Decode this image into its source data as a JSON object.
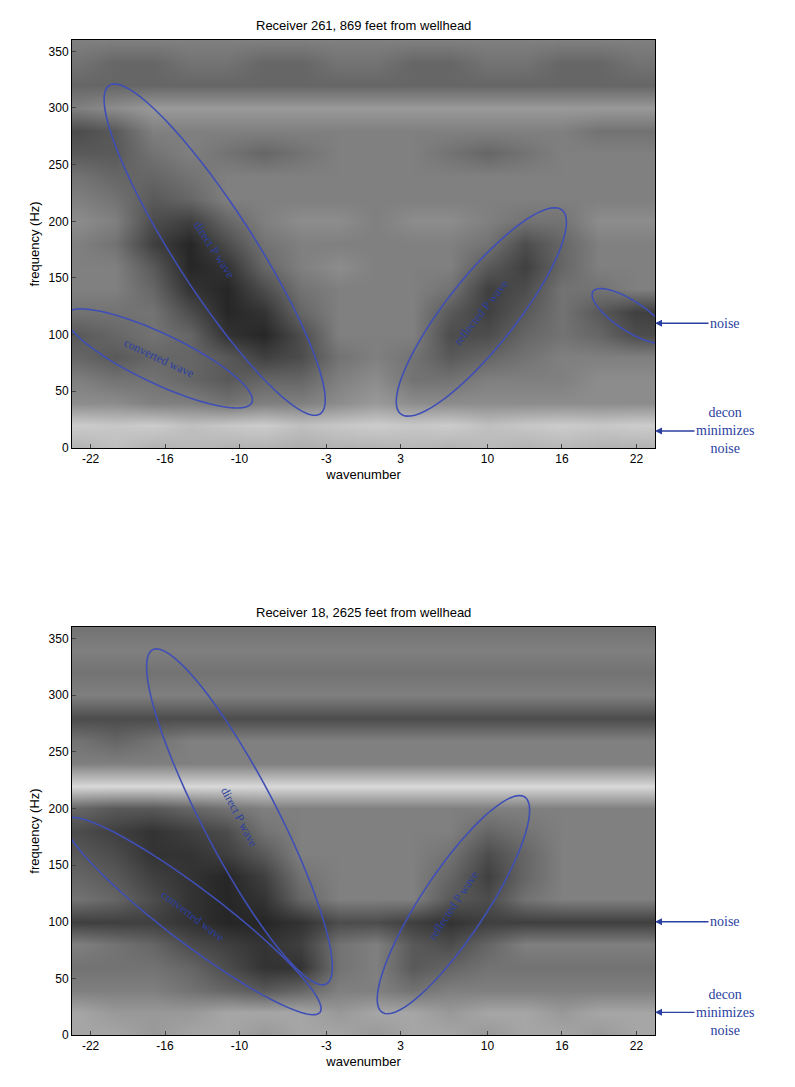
{
  "chart_data": [
    {
      "type": "heatmap",
      "title": "Receiver 261, 869 feet from wellhead",
      "x_label": "wavenumber",
      "y_label": "frequency (Hz)",
      "xlim": [
        -23.5,
        23.5
      ],
      "ylim": [
        0,
        360
      ],
      "xticks": [
        -22,
        -16,
        -10,
        -3,
        3,
        10,
        16,
        22
      ],
      "yticks": [
        0,
        50,
        100,
        150,
        200,
        250,
        300,
        350
      ],
      "zlim": [
        0,
        1
      ],
      "x": [
        -23,
        -20,
        -17,
        -14,
        -11,
        -8,
        -5,
        -2,
        1,
        4,
        7,
        10,
        13,
        16,
        19,
        22
      ],
      "y": [
        0,
        20,
        40,
        60,
        80,
        100,
        120,
        140,
        160,
        180,
        200,
        220,
        240,
        260,
        280,
        300,
        320,
        340,
        360
      ],
      "cells": [
        [
          0.3,
          0.25,
          0.3,
          0.28,
          0.3,
          0.3,
          0.32,
          0.3,
          0.3,
          0.28,
          0.3,
          0.27,
          0.3,
          0.28,
          0.3,
          0.3
        ],
        [
          0.2,
          0.22,
          0.2,
          0.25,
          0.22,
          0.2,
          0.25,
          0.22,
          0.2,
          0.22,
          0.2,
          0.25,
          0.22,
          0.2,
          0.22,
          0.2
        ],
        [
          0.45,
          0.45,
          0.5,
          0.5,
          0.55,
          0.5,
          0.5,
          0.45,
          0.4,
          0.45,
          0.45,
          0.45,
          0.45,
          0.45,
          0.45,
          0.45
        ],
        [
          0.5,
          0.55,
          0.55,
          0.6,
          0.65,
          0.6,
          0.6,
          0.5,
          0.45,
          0.55,
          0.55,
          0.5,
          0.5,
          0.5,
          0.45,
          0.45
        ],
        [
          0.6,
          0.65,
          0.6,
          0.6,
          0.65,
          0.75,
          0.7,
          0.55,
          0.5,
          0.55,
          0.65,
          0.6,
          0.55,
          0.5,
          0.5,
          0.5
        ],
        [
          0.65,
          0.6,
          0.55,
          0.6,
          0.8,
          0.85,
          0.7,
          0.5,
          0.5,
          0.5,
          0.7,
          0.7,
          0.6,
          0.55,
          0.6,
          0.7
        ],
        [
          0.55,
          0.55,
          0.55,
          0.7,
          0.85,
          0.8,
          0.6,
          0.5,
          0.5,
          0.5,
          0.65,
          0.75,
          0.65,
          0.55,
          0.65,
          0.75
        ],
        [
          0.5,
          0.5,
          0.6,
          0.8,
          0.85,
          0.7,
          0.55,
          0.5,
          0.5,
          0.5,
          0.55,
          0.75,
          0.7,
          0.55,
          0.55,
          0.5
        ],
        [
          0.5,
          0.5,
          0.65,
          0.85,
          0.8,
          0.6,
          0.5,
          0.45,
          0.5,
          0.5,
          0.5,
          0.65,
          0.75,
          0.6,
          0.5,
          0.5
        ],
        [
          0.5,
          0.55,
          0.75,
          0.85,
          0.7,
          0.55,
          0.5,
          0.5,
          0.5,
          0.5,
          0.5,
          0.55,
          0.7,
          0.6,
          0.5,
          0.5
        ],
        [
          0.45,
          0.5,
          0.7,
          0.75,
          0.6,
          0.5,
          0.45,
          0.45,
          0.5,
          0.45,
          0.45,
          0.5,
          0.55,
          0.55,
          0.45,
          0.45
        ],
        [
          0.5,
          0.55,
          0.65,
          0.6,
          0.5,
          0.5,
          0.5,
          0.5,
          0.5,
          0.5,
          0.5,
          0.5,
          0.5,
          0.5,
          0.5,
          0.5
        ],
        [
          0.55,
          0.6,
          0.6,
          0.55,
          0.5,
          0.5,
          0.5,
          0.5,
          0.5,
          0.5,
          0.5,
          0.5,
          0.5,
          0.5,
          0.5,
          0.5
        ],
        [
          0.65,
          0.65,
          0.55,
          0.5,
          0.55,
          0.6,
          0.55,
          0.5,
          0.5,
          0.5,
          0.55,
          0.6,
          0.55,
          0.5,
          0.5,
          0.5
        ],
        [
          0.7,
          0.65,
          0.5,
          0.5,
          0.5,
          0.5,
          0.5,
          0.5,
          0.5,
          0.5,
          0.5,
          0.5,
          0.5,
          0.5,
          0.55,
          0.55
        ],
        [
          0.5,
          0.45,
          0.4,
          0.4,
          0.4,
          0.4,
          0.4,
          0.4,
          0.4,
          0.4,
          0.4,
          0.4,
          0.4,
          0.4,
          0.4,
          0.4
        ],
        [
          0.6,
          0.6,
          0.6,
          0.6,
          0.6,
          0.6,
          0.6,
          0.6,
          0.6,
          0.6,
          0.6,
          0.6,
          0.6,
          0.6,
          0.6,
          0.6
        ],
        [
          0.55,
          0.6,
          0.6,
          0.55,
          0.55,
          0.6,
          0.6,
          0.55,
          0.55,
          0.6,
          0.6,
          0.55,
          0.55,
          0.6,
          0.6,
          0.55
        ],
        [
          0.5,
          0.5,
          0.5,
          0.5,
          0.5,
          0.5,
          0.5,
          0.5,
          0.5,
          0.5,
          0.5,
          0.5,
          0.5,
          0.5,
          0.5,
          0.5
        ]
      ],
      "regions": [
        {
          "label": "direct P wave",
          "from": [
            -3.5,
            30
          ],
          "to": [
            -20.5,
            320
          ],
          "half_width": 3.2
        },
        {
          "label": "converted wave",
          "from": [
            -9,
            40
          ],
          "to": [
            -24,
            118
          ],
          "half_width": 2
        },
        {
          "label": "reflected P wave",
          "from": [
            3,
            30
          ],
          "to": [
            16,
            210
          ],
          "half_width": 2.8
        },
        {
          "from": [
            18.5,
            138
          ],
          "to": [
            24.5,
            95
          ],
          "half_width": 1.2
        }
      ],
      "annotations": [
        {
          "text": "noise",
          "y": 110
        },
        {
          "text": "decon minimizes noise",
          "y": 15
        }
      ]
    },
    {
      "type": "heatmap",
      "title": "Receiver 18, 2625 feet from wellhead",
      "x_label": "wavenumber",
      "y_label": "frequency (Hz)",
      "xlim": [
        -23.5,
        23.5
      ],
      "ylim": [
        0,
        360
      ],
      "xticks": [
        -22,
        -16,
        -10,
        -3,
        3,
        10,
        16,
        22
      ],
      "yticks": [
        0,
        50,
        100,
        150,
        200,
        250,
        300,
        350
      ],
      "zlim": [
        0,
        1
      ],
      "x": [
        -23,
        -20,
        -17,
        -14,
        -11,
        -8,
        -5,
        -2,
        1,
        4,
        7,
        10,
        13,
        16,
        19,
        22
      ],
      "y": [
        0,
        20,
        40,
        60,
        80,
        100,
        120,
        140,
        160,
        180,
        200,
        220,
        240,
        260,
        280,
        300,
        320,
        340,
        360
      ],
      "cells": [
        [
          0.35,
          0.35,
          0.4,
          0.35,
          0.35,
          0.4,
          0.35,
          0.35,
          0.4,
          0.35,
          0.35,
          0.4,
          0.35,
          0.35,
          0.4,
          0.35
        ],
        [
          0.35,
          0.4,
          0.4,
          0.4,
          0.35,
          0.35,
          0.35,
          0.4,
          0.35,
          0.35,
          0.4,
          0.35,
          0.35,
          0.4,
          0.35,
          0.35
        ],
        [
          0.5,
          0.5,
          0.5,
          0.55,
          0.6,
          0.65,
          0.6,
          0.5,
          0.5,
          0.55,
          0.5,
          0.5,
          0.5,
          0.5,
          0.5,
          0.5
        ],
        [
          0.55,
          0.55,
          0.55,
          0.6,
          0.7,
          0.8,
          0.8,
          0.55,
          0.5,
          0.65,
          0.6,
          0.55,
          0.55,
          0.55,
          0.55,
          0.55
        ],
        [
          0.5,
          0.55,
          0.6,
          0.7,
          0.75,
          0.8,
          0.75,
          0.55,
          0.5,
          0.65,
          0.7,
          0.6,
          0.5,
          0.5,
          0.5,
          0.5
        ],
        [
          0.75,
          0.75,
          0.75,
          0.8,
          0.85,
          0.85,
          0.8,
          0.7,
          0.7,
          0.75,
          0.8,
          0.75,
          0.75,
          0.75,
          0.75,
          0.75
        ],
        [
          0.55,
          0.6,
          0.7,
          0.8,
          0.85,
          0.8,
          0.6,
          0.5,
          0.5,
          0.5,
          0.65,
          0.7,
          0.55,
          0.5,
          0.5,
          0.5
        ],
        [
          0.6,
          0.65,
          0.75,
          0.8,
          0.85,
          0.75,
          0.55,
          0.5,
          0.5,
          0.5,
          0.6,
          0.75,
          0.6,
          0.5,
          0.5,
          0.5
        ],
        [
          0.65,
          0.7,
          0.8,
          0.8,
          0.75,
          0.65,
          0.5,
          0.5,
          0.5,
          0.5,
          0.55,
          0.7,
          0.6,
          0.5,
          0.5,
          0.5
        ],
        [
          0.7,
          0.75,
          0.8,
          0.75,
          0.7,
          0.55,
          0.5,
          0.5,
          0.5,
          0.5,
          0.5,
          0.6,
          0.55,
          0.5,
          0.5,
          0.5
        ],
        [
          0.6,
          0.65,
          0.65,
          0.6,
          0.55,
          0.5,
          0.5,
          0.5,
          0.5,
          0.5,
          0.5,
          0.5,
          0.5,
          0.5,
          0.5,
          0.5
        ],
        [
          0.15,
          0.15,
          0.15,
          0.15,
          0.15,
          0.15,
          0.15,
          0.15,
          0.15,
          0.15,
          0.15,
          0.15,
          0.15,
          0.15,
          0.15,
          0.15
        ],
        [
          0.5,
          0.5,
          0.5,
          0.5,
          0.5,
          0.5,
          0.5,
          0.5,
          0.5,
          0.5,
          0.5,
          0.5,
          0.5,
          0.5,
          0.5,
          0.5
        ],
        [
          0.55,
          0.6,
          0.55,
          0.5,
          0.5,
          0.5,
          0.5,
          0.5,
          0.5,
          0.5,
          0.5,
          0.5,
          0.5,
          0.5,
          0.5,
          0.5
        ],
        [
          0.7,
          0.7,
          0.7,
          0.7,
          0.7,
          0.7,
          0.7,
          0.7,
          0.7,
          0.7,
          0.7,
          0.7,
          0.7,
          0.7,
          0.7,
          0.7
        ],
        [
          0.5,
          0.5,
          0.5,
          0.5,
          0.5,
          0.5,
          0.5,
          0.5,
          0.5,
          0.5,
          0.5,
          0.5,
          0.5,
          0.5,
          0.5,
          0.5
        ],
        [
          0.55,
          0.55,
          0.55,
          0.55,
          0.55,
          0.55,
          0.55,
          0.55,
          0.55,
          0.55,
          0.55,
          0.55,
          0.55,
          0.55,
          0.55,
          0.55
        ],
        [
          0.5,
          0.5,
          0.5,
          0.5,
          0.5,
          0.5,
          0.5,
          0.5,
          0.5,
          0.5,
          0.5,
          0.5,
          0.5,
          0.5,
          0.5,
          0.5
        ],
        [
          0.55,
          0.55,
          0.55,
          0.55,
          0.55,
          0.55,
          0.55,
          0.55,
          0.55,
          0.55,
          0.55,
          0.55,
          0.55,
          0.55,
          0.55,
          0.55
        ]
      ],
      "regions": [
        {
          "label": "direct P wave",
          "from": [
            -3,
            45
          ],
          "to": [
            -17,
            340
          ],
          "half_width": 3
        },
        {
          "label": "converted wave",
          "from": [
            -3.5,
            20
          ],
          "to": [
            -24,
            190
          ],
          "half_width": 2.2
        },
        {
          "label": "reflected P wave",
          "from": [
            1.5,
            20
          ],
          "to": [
            13,
            210
          ],
          "half_width": 2.6
        }
      ],
      "annotations": [
        {
          "text": "noise",
          "y": 100
        },
        {
          "text": "decon minimizes noise",
          "y": 20
        }
      ]
    }
  ]
}
